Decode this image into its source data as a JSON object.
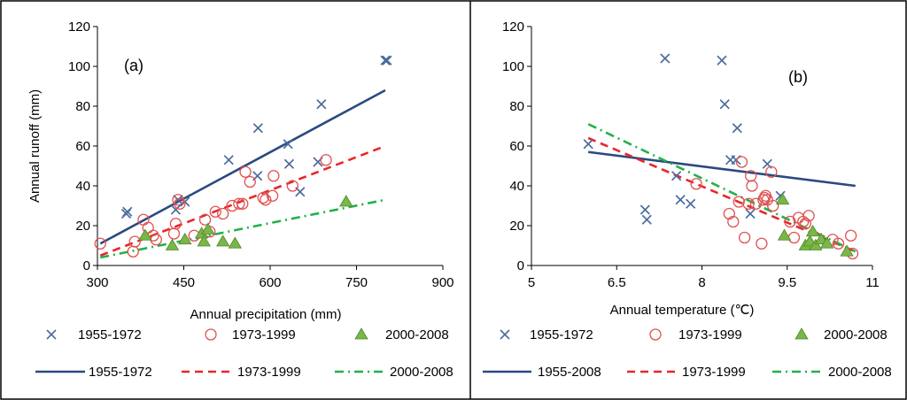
{
  "chart_data": [
    {
      "type": "scatter",
      "panel_label": "(a)",
      "xlabel": "Annual precipitation (mm)",
      "ylabel": "Annual runoff (mm)",
      "xlim": [
        300,
        900
      ],
      "ylim": [
        0,
        120
      ],
      "xticks": [
        "300",
        "450",
        "600",
        "750",
        "900"
      ],
      "yticks": [
        "0",
        "20",
        "40",
        "60",
        "80",
        "100",
        "120"
      ],
      "grid": false,
      "legend_position": "bottom",
      "series": [
        {
          "name": "1955-1972",
          "marker": "x",
          "color": "#4a6a9c",
          "points": [
            [
              350,
              26
            ],
            [
              352,
              27
            ],
            [
              436,
              28
            ],
            [
              440,
              33
            ],
            [
              452,
              32
            ],
            [
              528,
              53
            ],
            [
              578,
              45
            ],
            [
              579,
              69
            ],
            [
              631,
              61
            ],
            [
              633,
              51
            ],
            [
              652,
              37
            ],
            [
              683,
              52
            ],
            [
              689,
              81
            ],
            [
              800,
              103
            ],
            [
              803,
              103
            ]
          ]
        },
        {
          "name": "1973-1999",
          "marker": "circle",
          "color": "#e05050",
          "points": [
            [
              305,
              11
            ],
            [
              362,
              7
            ],
            [
              365,
              12
            ],
            [
              380,
              23
            ],
            [
              388,
              19
            ],
            [
              397,
              15
            ],
            [
              402,
              13
            ],
            [
              433,
              16
            ],
            [
              436,
              21
            ],
            [
              440,
              33
            ],
            [
              443,
              31
            ],
            [
              468,
              15
            ],
            [
              487,
              23
            ],
            [
              495,
              17
            ],
            [
              505,
              27
            ],
            [
              518,
              26
            ],
            [
              534,
              30
            ],
            [
              546,
              31
            ],
            [
              552,
              31
            ],
            [
              557,
              47
            ],
            [
              565,
              42
            ],
            [
              588,
              34
            ],
            [
              592,
              33
            ],
            [
              604,
              35
            ],
            [
              606,
              45
            ],
            [
              639,
              40
            ],
            [
              697,
              53
            ]
          ]
        },
        {
          "name": "2000-2008",
          "marker": "triangle",
          "color": "#7ab648",
          "points": [
            [
              383,
              15
            ],
            [
              430,
              10
            ],
            [
              452,
              13
            ],
            [
              481,
              16
            ],
            [
              485,
              12
            ],
            [
              492,
              18
            ],
            [
              518,
              12
            ],
            [
              539,
              11
            ],
            [
              732,
              32
            ]
          ]
        }
      ],
      "trendlines": [
        {
          "name": "1955-1972",
          "style": "solid",
          "color": "#2a4a80",
          "from": [
            305,
            11
          ],
          "to": [
            800,
            88
          ]
        },
        {
          "name": "1973-1999",
          "style": "dashed",
          "color": "#e8262b",
          "from": [
            305,
            5
          ],
          "to": [
            800,
            60
          ]
        },
        {
          "name": "2000-2008",
          "style": "dashdot",
          "color": "#22b04a",
          "from": [
            305,
            4
          ],
          "to": [
            800,
            33
          ]
        }
      ]
    },
    {
      "type": "scatter",
      "panel_label": "(b)",
      "xlabel": "Annual temperature (℃)",
      "ylabel": "",
      "xlim": [
        5,
        11
      ],
      "ylim": [
        0,
        120
      ],
      "xticks": [
        "5",
        "6.5",
        "8",
        "9.5",
        "11"
      ],
      "yticks": [
        "0",
        "20",
        "40",
        "60",
        "80",
        "100",
        "120"
      ],
      "grid": false,
      "legend_position": "bottom",
      "series": [
        {
          "name": "1955-1972",
          "marker": "x",
          "color": "#4a6a9c",
          "points": [
            [
              6.0,
              61
            ],
            [
              7.0,
              28
            ],
            [
              7.03,
              23
            ],
            [
              7.35,
              104
            ],
            [
              7.55,
              45
            ],
            [
              7.62,
              33
            ],
            [
              7.8,
              31
            ],
            [
              8.35,
              103
            ],
            [
              8.4,
              81
            ],
            [
              8.5,
              53
            ],
            [
              8.6,
              53
            ],
            [
              8.62,
              69
            ],
            [
              8.85,
              26
            ],
            [
              9.15,
              51
            ],
            [
              9.38,
              35
            ]
          ]
        },
        {
          "name": "1973-1999",
          "marker": "circle",
          "color": "#e05050",
          "points": [
            [
              7.9,
              41
            ],
            [
              8.48,
              26
            ],
            [
              8.55,
              22
            ],
            [
              8.65,
              32
            ],
            [
              8.7,
              52
            ],
            [
              8.75,
              14
            ],
            [
              8.82,
              31
            ],
            [
              8.86,
              45
            ],
            [
              8.88,
              40
            ],
            [
              8.95,
              31
            ],
            [
              9.05,
              11
            ],
            [
              9.08,
              33
            ],
            [
              9.1,
              34
            ],
            [
              9.12,
              35
            ],
            [
              9.15,
              33
            ],
            [
              9.22,
              47
            ],
            [
              9.25,
              30
            ],
            [
              9.55,
              22
            ],
            [
              9.62,
              14
            ],
            [
              9.7,
              24
            ],
            [
              9.78,
              22
            ],
            [
              9.82,
              21
            ],
            [
              9.88,
              25
            ],
            [
              10.0,
              14
            ],
            [
              10.3,
              13
            ],
            [
              10.4,
              11
            ],
            [
              10.62,
              15
            ],
            [
              10.65,
              6
            ]
          ]
        },
        {
          "name": "2000-2008",
          "marker": "triangle",
          "color": "#7ab648",
          "points": [
            [
              9.42,
              33
            ],
            [
              9.45,
              15
            ],
            [
              9.82,
              10
            ],
            [
              9.9,
              12
            ],
            [
              9.95,
              17
            ],
            [
              10.0,
              10
            ],
            [
              10.1,
              13
            ],
            [
              10.2,
              11
            ],
            [
              10.55,
              7
            ]
          ]
        }
      ],
      "trendlines": [
        {
          "name": "1955-2008",
          "style": "solid",
          "color": "#2a4a80",
          "from": [
            6.0,
            57
          ],
          "to": [
            10.7,
            40
          ]
        },
        {
          "name": "1973-1999",
          "style": "dashed",
          "color": "#e8262b",
          "from": [
            6.0,
            64
          ],
          "to": [
            10.7,
            7
          ]
        },
        {
          "name": "2000-2008",
          "style": "dashdot",
          "color": "#22b04a",
          "from": [
            6.0,
            71
          ],
          "to": [
            10.7,
            7
          ]
        }
      ]
    }
  ]
}
